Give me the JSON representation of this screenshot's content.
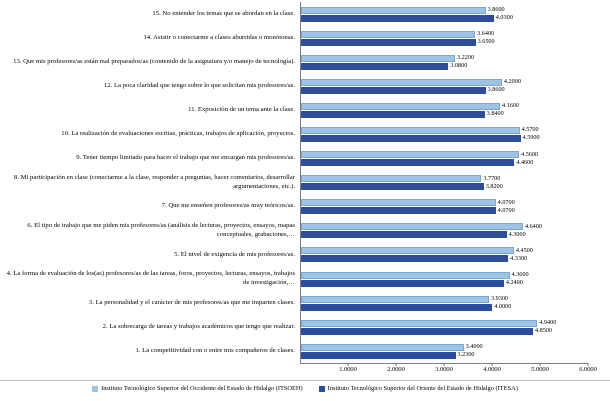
{
  "chart_data": {
    "type": "bar",
    "orientation": "horizontal",
    "title": "",
    "xlabel": "",
    "ylabel": "",
    "xlim": [
      0,
      6
    ],
    "x_ticks": [
      1,
      2,
      3,
      4,
      5,
      6
    ],
    "tick_decimals": 4,
    "value_label_decimals": 4,
    "grid": false,
    "legend_position": "bottom",
    "categories": [
      "15. No entender los temas que se abordan en la clase.",
      "14. Asistir o conectarme a clases aburridas o monótonas.",
      "13. Que mis profesores/as están mal preparados/as (contenido de la asignatura y/o manejo de tecnología).",
      "12. La poca claridad que tengo sobre lo que solicitan mis profesores/as.",
      "11. Exposición de un tema ante la clase.",
      "10. La realización de evaluaciones escritas, prácticas, trabajos de aplicación, proyectos.",
      "9. Tener tiempo limitado para hacer el trabajo que me encargan mis profesores/as.",
      "8. Mi participación en clase (conectarme a la clase, responder a preguntas, hacer comentarios, desarrollar argumentaciones, etc.).",
      "7. Que me enseñen profesores/as muy teóricos/as.",
      "6. El tipo de trabajo que me piden mis profesores/as (análisis de lecturas, proyectos, ensayos, mapas conceptuales, grabaciones,…",
      "5. El nivel de exigencia de mis profesores/as.",
      "4. La forma de evaluación de los(as) profesores/as de las tareas, foros, proyectos, lecturas, ensayos, trabajos de investigación,…",
      "3. La personalidad y el carácter de mis profesores/as que me imparten clases.",
      "2. La sobrecarga de tareas y trabajos académicos que tengo que realizar.",
      "1. La competitividad con o entre mis compañeros de clases."
    ],
    "series": [
      {
        "name": "Instituto Tecnológico Superior del Occidente del Estado de Hidalgo (ITSOEH)",
        "color": "#9dc3e6",
        "values": [
          3.86,
          3.64,
          3.22,
          4.2,
          4.16,
          4.57,
          4.56,
          3.77,
          4.07,
          4.64,
          4.45,
          4.36,
          3.93,
          4.94,
          3.4
        ]
      },
      {
        "name": "Instituto Tecnológico Superior del Oriente del Estado de Hidalgo (ITESA)",
        "color": "#2e4c9e",
        "values": [
          4.03,
          3.65,
          3.08,
          3.86,
          3.84,
          4.59,
          4.46,
          3.82,
          4.07,
          4.3,
          4.33,
          4.24,
          4.0,
          4.85,
          3.23
        ]
      }
    ]
  }
}
